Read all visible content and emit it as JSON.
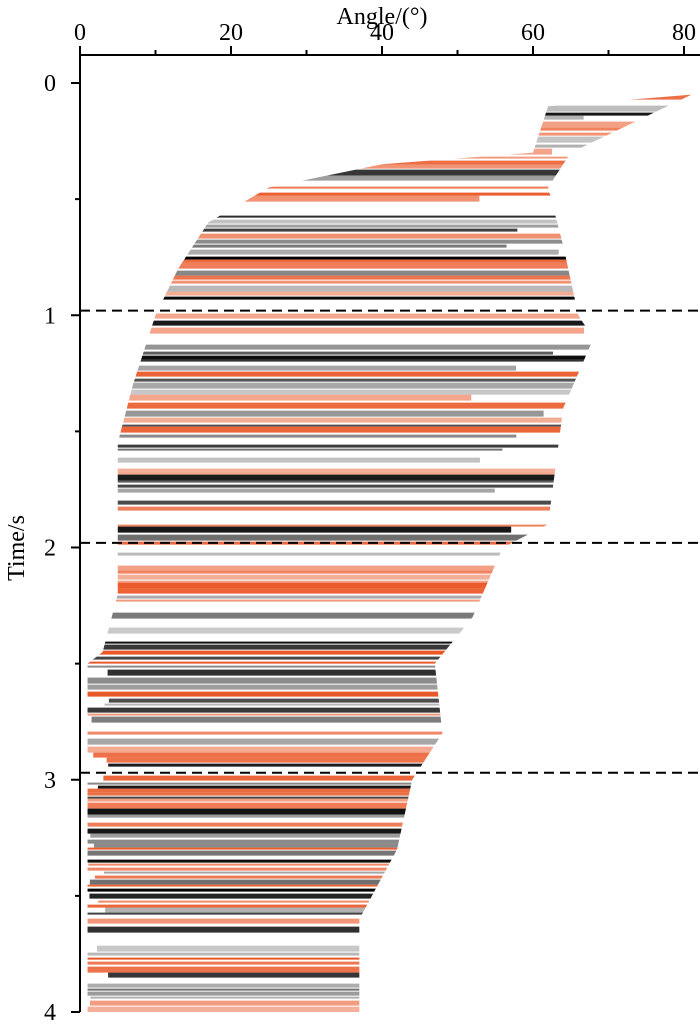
{
  "chart_data": {
    "type": "gather",
    "x_label": "Angle/(°)",
    "y_label": "Time/s",
    "xlim": [
      0,
      80
    ],
    "ylim": [
      0,
      4
    ],
    "xticks": [
      0,
      20,
      40,
      60,
      80
    ],
    "xminor": [
      10,
      30,
      50,
      70
    ],
    "yticks": [
      0,
      1,
      2,
      3,
      4
    ],
    "yminor": [
      0.5,
      1.5,
      2.5,
      3.5
    ],
    "reference_lines": [
      0.98,
      1.98,
      2.97
    ],
    "colors": [
      "#e8501e",
      "#000000",
      "#8a8a8a"
    ],
    "right_edge": {
      "time": [
        0.05,
        0.3,
        0.45,
        0.7,
        1.0,
        1.1,
        1.4,
        1.9,
        2.0,
        2.3,
        2.5,
        2.8,
        3.0,
        3.3,
        3.6,
        4.0
      ],
      "angle": [
        81,
        65,
        62,
        64,
        66,
        68,
        64,
        62,
        56,
        52,
        47,
        48,
        44,
        42,
        37,
        37
      ]
    },
    "left_edge": {
      "time": [
        4.0,
        2.5,
        2.45,
        2.2,
        1.55,
        1.3,
        1.0,
        0.8,
        0.6,
        0.45,
        0.35,
        0.3,
        0.1
      ],
      "angle": [
        1,
        1,
        3,
        5,
        5,
        7,
        10,
        13,
        17,
        25,
        40,
        60,
        62
      ]
    }
  }
}
